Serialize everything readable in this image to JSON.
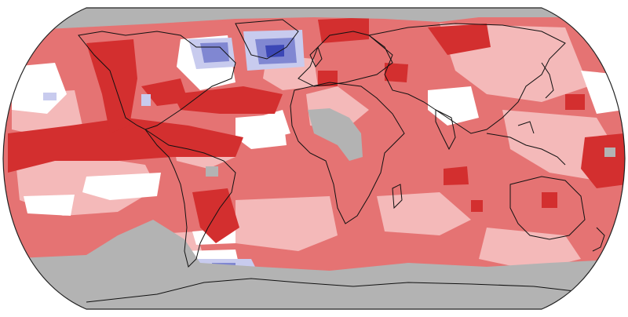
{
  "map": {
    "projection": "Robinson",
    "variable": "temperature-anomaly-percentile",
    "colors": {
      "background": "#ffffff",
      "ocean_outline": "#222222",
      "land_outline": "#111111",
      "no_data": "#b3b3b3",
      "much_warmer": "#d32f2f",
      "warmer": "#e57373",
      "slightly_warmer": "#f4b9b9",
      "near_average": "#ffffff",
      "slightly_cooler": "#c8cbee",
      "cooler": "#8087d2",
      "much_cooler": "#3c47b6"
    },
    "icons": {
      "frame": "globe-outline-icon",
      "coastlines": "coastline-icon"
    }
  }
}
